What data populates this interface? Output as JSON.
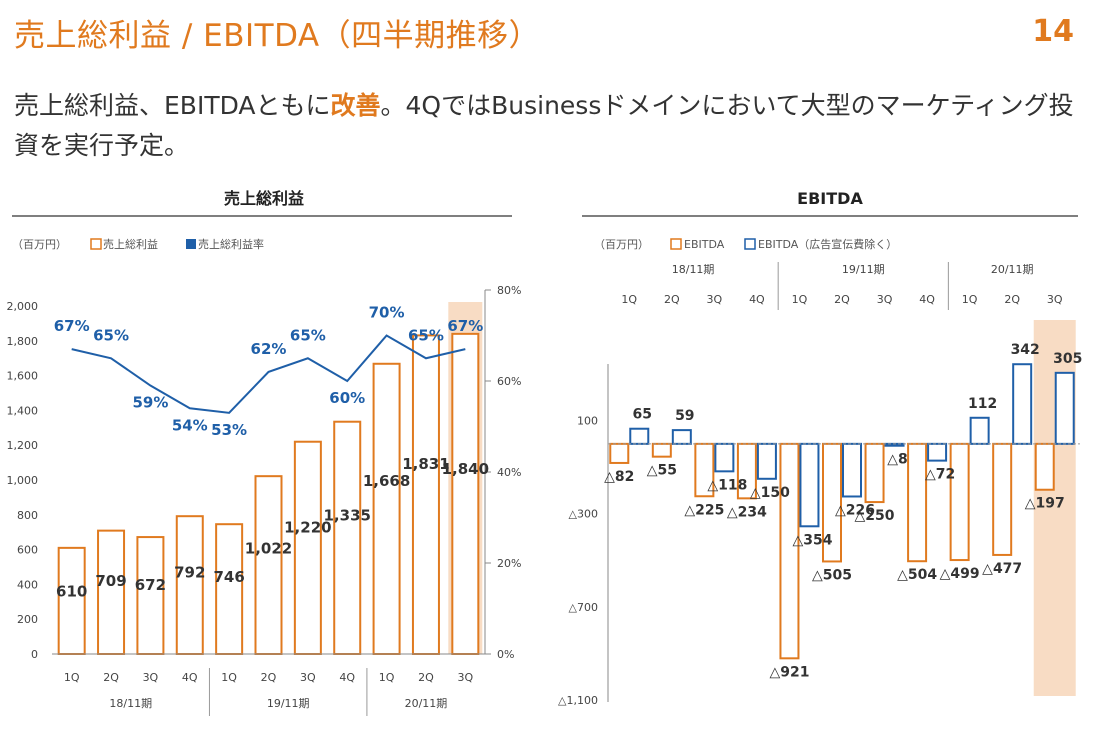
{
  "header": {
    "title": "売上総利益 / EBITDA（四半期推移）",
    "page_number": "14",
    "lead_pre": "売上総利益、EBITDAともに",
    "lead_highlight": "改善",
    "lead_post": "。4QではBusinessドメインにおいて大型のマーケティング投資を実行予定。"
  },
  "colors": {
    "orange": "#e07a1f",
    "blue": "#1f5fa8",
    "highlight": "#f8dcc4",
    "text": "#333333"
  },
  "chart_data": [
    {
      "type": "bar",
      "title": "売上総利益",
      "unit_label": "（百万円）",
      "legend": [
        {
          "label": "売上総利益",
          "marker": "hollow-orange"
        },
        {
          "label": "売上総利益率",
          "marker": "solid-blue"
        }
      ],
      "categories": [
        "1Q",
        "2Q",
        "3Q",
        "4Q",
        "1Q",
        "2Q",
        "3Q",
        "4Q",
        "1Q",
        "2Q",
        "3Q"
      ],
      "years": [
        {
          "label": "18/11期",
          "count": 4
        },
        {
          "label": "19/11期",
          "count": 4
        },
        {
          "label": "20/11期",
          "count": 3
        }
      ],
      "series": [
        {
          "name": "売上総利益",
          "type": "bar",
          "values": [
            610,
            709,
            672,
            792,
            746,
            1022,
            1220,
            1335,
            1668,
            1831,
            1840
          ],
          "labels": [
            "610",
            "709",
            "672",
            "792",
            "746",
            "1,022",
            "1,220",
            "1,335",
            "1,668",
            "1,831",
            "1,840"
          ]
        },
        {
          "name": "売上総利益率",
          "type": "line",
          "axis": "right",
          "values": [
            67,
            65,
            59,
            54,
            53,
            62,
            65,
            60,
            70,
            65,
            67
          ],
          "labels": [
            "67%",
            "65%",
            "59%",
            "54%",
            "53%",
            "62%",
            "65%",
            "60%",
            "70%",
            "65%",
            "67%"
          ]
        }
      ],
      "ylim": [
        0,
        2000
      ],
      "yticks": [
        "0",
        "200",
        "400",
        "600",
        "800",
        "1,000",
        "1,200",
        "1,400",
        "1,600",
        "1,800",
        "2,000"
      ],
      "y2lim": [
        0,
        80
      ],
      "y2ticks": [
        "0%",
        "20%",
        "40%",
        "60%",
        "80%"
      ],
      "highlight_category_index": 10
    },
    {
      "type": "bar",
      "title": "EBITDA",
      "unit_label": "（百万円）",
      "legend": [
        {
          "label": "EBITDA",
          "marker": "hollow-orange"
        },
        {
          "label": "EBITDA（広告宣伝費除く）",
          "marker": "hollow-blue"
        }
      ],
      "categories": [
        "1Q",
        "2Q",
        "3Q",
        "4Q",
        "1Q",
        "2Q",
        "3Q",
        "4Q",
        "1Q",
        "2Q",
        "3Q"
      ],
      "years": [
        {
          "label": "18/11期",
          "count": 4
        },
        {
          "label": "19/11期",
          "count": 4
        },
        {
          "label": "20/11期",
          "count": 3
        }
      ],
      "series": [
        {
          "name": "EBITDA",
          "values": [
            -82,
            -55,
            -225,
            -234,
            -921,
            -505,
            -250,
            -504,
            -499,
            -477,
            -197
          ],
          "labels": [
            "△82",
            "△55",
            "△225",
            "△234",
            "△921",
            "△505",
            "△250",
            "△504",
            "△499",
            "△477",
            "△197"
          ]
        },
        {
          "name": "EBITDA（広告宣伝費除く）",
          "values": [
            65,
            59,
            -118,
            -150,
            -354,
            -226,
            -8,
            -72,
            112,
            342,
            305
          ],
          "labels": [
            "65",
            "59",
            "△118",
            "△150",
            "△354",
            "△226",
            "△8",
            "△72",
            "112",
            "342",
            "305"
          ]
        }
      ],
      "ylim": [
        -1100,
        300
      ],
      "yticks": [
        {
          "value": 100,
          "label": "100"
        },
        {
          "value": -300,
          "label": "△300"
        },
        {
          "value": -700,
          "label": "△700"
        },
        {
          "value": -1100,
          "label": "△1,100"
        }
      ],
      "highlight_category_index": 10
    }
  ]
}
